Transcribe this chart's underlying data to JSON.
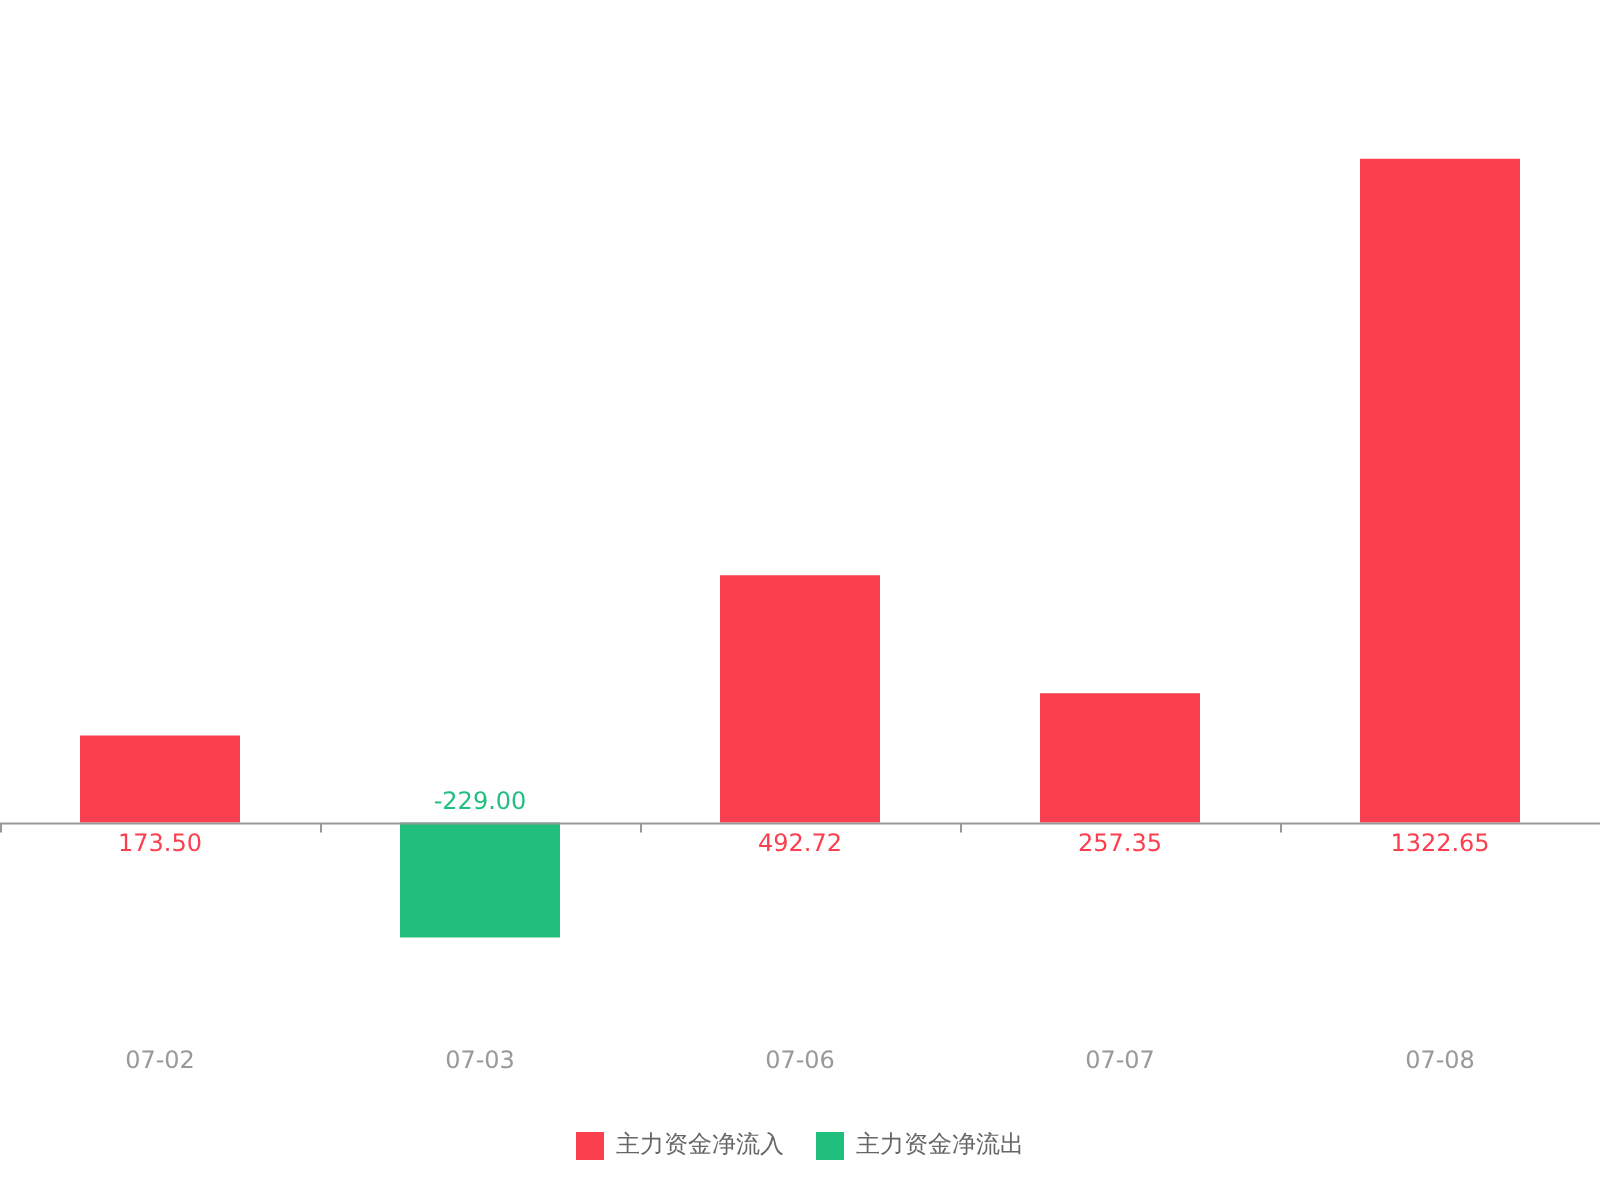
{
  "chart_data": {
    "type": "bar",
    "categories": [
      "07-02",
      "07-03",
      "07-06",
      "07-07",
      "07-08"
    ],
    "series": [
      {
        "name": "主力资金净流入",
        "color": "#fc3f4f",
        "values": [
          173.5,
          null,
          492.72,
          257.35,
          1322.65
        ],
        "value_labels": [
          "173.50",
          null,
          "492.72",
          "257.35",
          "1322.65"
        ]
      },
      {
        "name": "主力资金净流出",
        "color": "#20bf7e",
        "values": [
          null,
          -229.0,
          null,
          null,
          null
        ],
        "value_labels": [
          null,
          "-229.00",
          null,
          null,
          null
        ]
      }
    ],
    "legend": "bottom",
    "grid": false
  }
}
